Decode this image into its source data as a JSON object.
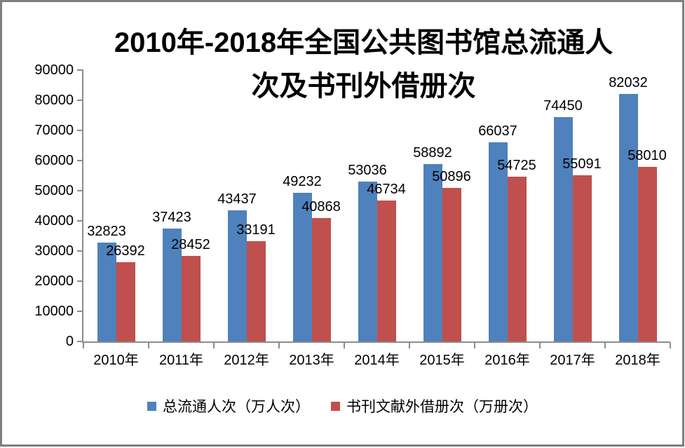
{
  "window": {
    "background": "#FFFFFF",
    "frame_color": "#7F7F7F"
  },
  "chart_data": {
    "type": "bar",
    "title": "2010年-2018年全国公共图书馆总流通人次及书刊外借册次",
    "title_lines": [
      "2010年-2018年全国公共图书馆总流通人",
      "次及书刊外借册次"
    ],
    "categories": [
      "2010年",
      "2011年",
      "2012年",
      "2013年",
      "2014年",
      "2015年",
      "2016年",
      "2017年",
      "2018年"
    ],
    "series": [
      {
        "name": "总流通人次（万人次）",
        "color": "#4F81BD",
        "values": [
          32823,
          37423,
          43437,
          49232,
          53036,
          58892,
          66037,
          74450,
          82032
        ]
      },
      {
        "name": "书刊文献外借册次（万册次）",
        "color": "#C0504D",
        "values": [
          26392,
          28452,
          33191,
          40868,
          46734,
          50896,
          54725,
          55091,
          58010
        ]
      }
    ],
    "ylim": [
      0,
      90000
    ],
    "yticks": [
      0,
      10000,
      20000,
      30000,
      40000,
      50000,
      60000,
      70000,
      80000,
      90000
    ],
    "grid": false,
    "data_labels": true,
    "legend_position": "bottom",
    "axis_color": "#8C8C8C",
    "text_color": "#000000"
  }
}
